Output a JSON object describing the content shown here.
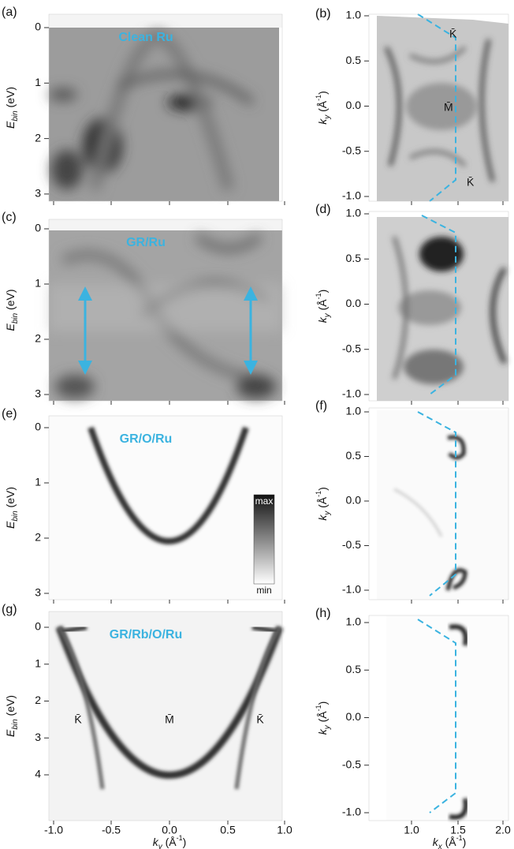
{
  "panels": [
    {
      "label": "(a)",
      "title": "Clean Ru",
      "y_ticks": [
        "0",
        "1",
        "2",
        "3"
      ]
    },
    {
      "label": "(b)",
      "y_ticks": [
        "1.0",
        "0.5",
        "0.0",
        "-0.5",
        "-1.0"
      ],
      "annotations": [
        "K̄",
        "M̄",
        "K̄"
      ]
    },
    {
      "label": "(c)",
      "title": "GR/Ru",
      "y_ticks": [
        "0",
        "1",
        "2",
        "3"
      ]
    },
    {
      "label": "(d)",
      "y_ticks": [
        "1.0",
        "0.5",
        "0.0",
        "-0.5",
        "-1.0"
      ]
    },
    {
      "label": "(e)",
      "title": "GR/O/Ru",
      "y_ticks": [
        "0",
        "1",
        "2",
        "3"
      ],
      "colorbar": {
        "max": "max",
        "min": "min"
      }
    },
    {
      "label": "(f)",
      "y_ticks": [
        "1.0",
        "0.5",
        "0.0",
        "-0.5",
        "-1.0"
      ]
    },
    {
      "label": "(g)",
      "title": "GR/Rb/O/Ru",
      "y_ticks": [
        "0",
        "1",
        "2",
        "3",
        "4"
      ],
      "annotations": [
        "K̄",
        "M̄",
        "K̄"
      ]
    },
    {
      "label": "(h)",
      "y_ticks": [
        "1.0",
        "0.5",
        "0.0",
        "-0.5",
        "-1.0"
      ]
    }
  ],
  "left_y_label": {
    "main": "E",
    "sub": "bin",
    "unit": " (eV)"
  },
  "right_y_label": {
    "main": "k",
    "sub": "y",
    "unit": " (Å",
    "sup": "-1",
    "close": ")"
  },
  "left_x_axis": {
    "ticks": [
      "-1.0",
      "-0.5",
      "0.0",
      "0.5",
      "1.0"
    ],
    "label": {
      "main": "k",
      "sub": "y",
      "unit": " (Å",
      "sup": "-1",
      "close": ")"
    }
  },
  "right_x_axis": {
    "ticks": [
      "1.0",
      "1.5",
      "2.0"
    ],
    "label": {
      "main": "k",
      "sub": "x",
      "unit": " (Å",
      "sup": "-1",
      "close": ")"
    }
  }
}
